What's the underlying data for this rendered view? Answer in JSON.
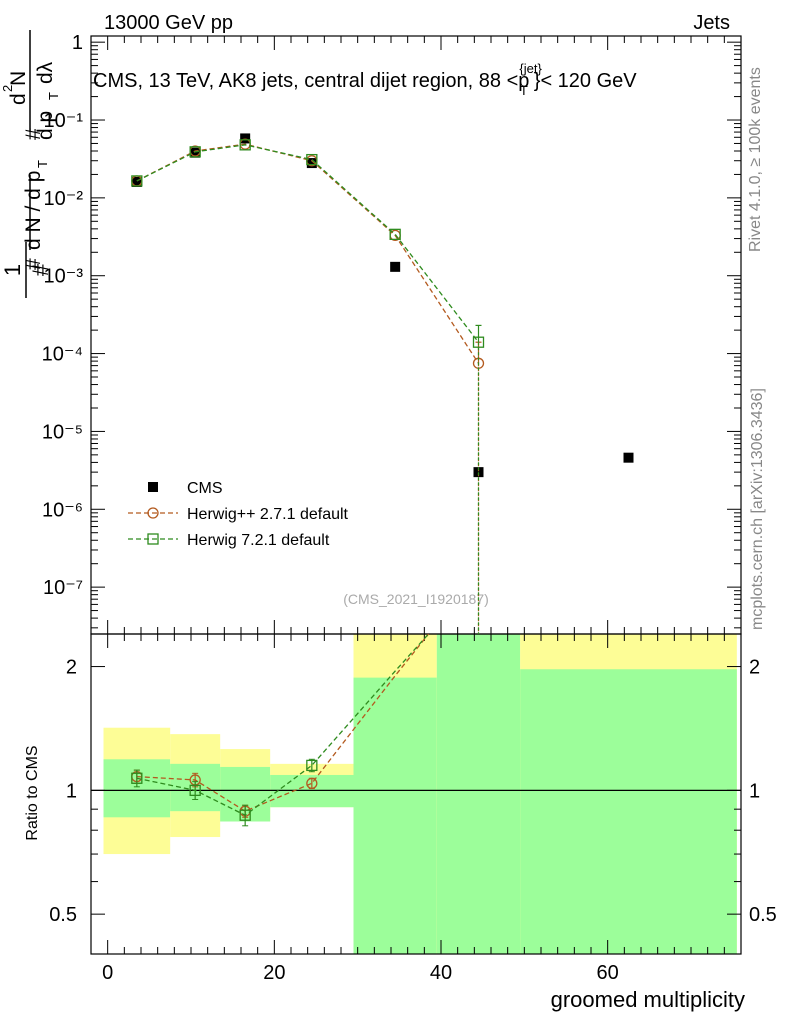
{
  "header": {
    "left": "13000 GeV pp",
    "right": "Jets",
    "title": "CMS, 13 TeV, AK8 jets, central dijet region, 88 <p",
    "title_sup": "{jet}",
    "title_sub": "T",
    "title_end": "}< 120 GeV"
  },
  "side_labels": {
    "rivet": "Rivet 4.1.0, ≥ 100k events",
    "mcplots": "mcplots.cern.ch [arXiv:1306.3436]"
  },
  "watermark": "(CMS_2021_I1920187)",
  "colors": {
    "data": "#000000",
    "herwigpp": "#b35a1f",
    "herwig7": "#2e8b1e",
    "band_inner": "#9cfe9a",
    "band_outer": "#fdfd96"
  },
  "chart_data": [
    {
      "type": "scatter",
      "panel": "main",
      "yscale": "log",
      "ylim": [
        2.5e-08,
        1.2
      ],
      "xlim": [
        -2,
        76
      ],
      "ylabel": "1/N dN/dp_T d²N/dp_T dλ",
      "ytick_labels": [
        "1",
        "10⁻¹",
        "10⁻²",
        "10⁻³",
        "10⁻⁴",
        "10⁻⁵",
        "10⁻⁶",
        "10⁻⁷"
      ],
      "ytick_values": [
        1,
        0.1,
        0.01,
        0.001,
        0.0001,
        1e-05,
        1e-06,
        1e-07
      ],
      "series": [
        {
          "name": "CMS",
          "marker": "filled-square",
          "x": [
            3.5,
            10.5,
            16.5,
            24.5,
            34.5,
            44.5,
            62.5
          ],
          "y": [
            0.016,
            0.038,
            0.058,
            0.028,
            0.0013,
            3e-06,
            4.6e-06
          ]
        },
        {
          "name": "Herwig++ 2.7.1 default",
          "marker": "open-circle",
          "line": "dashed",
          "x": [
            3.5,
            10.5,
            16.5,
            24.5,
            34.5,
            44.5
          ],
          "y": [
            0.0165,
            0.04,
            0.049,
            0.03,
            0.0033,
            7.5e-05
          ],
          "yerr_top": [
            null,
            null,
            null,
            null,
            null,
            0.00014
          ]
        },
        {
          "name": "Herwig 7.2.1 default",
          "marker": "open-square",
          "line": "dashed",
          "x": [
            3.5,
            10.5,
            16.5,
            24.5,
            34.5,
            44.5
          ],
          "y": [
            0.0165,
            0.039,
            0.048,
            0.031,
            0.0034,
            0.00014
          ],
          "yerr_top": [
            null,
            null,
            null,
            null,
            null,
            0.00023
          ]
        }
      ],
      "legend": [
        "CMS",
        "Herwig++ 2.7.1 default",
        "Herwig 7.2.1 default"
      ],
      "legend_position": "lower-left"
    },
    {
      "type": "line",
      "panel": "ratio",
      "yscale": "log",
      "ylim": [
        0.4,
        2.4
      ],
      "xlim": [
        -2,
        76
      ],
      "ylabel": "Ratio to CMS",
      "xlabel": "groomed multiplicity",
      "xtick_labels": [
        "0",
        "20",
        "40",
        "60"
      ],
      "xtick_values": [
        0,
        20,
        40,
        60
      ],
      "ytick_labels": [
        "0.5",
        "1",
        "2"
      ],
      "ytick_values": [
        0.5,
        1,
        2
      ],
      "reference_line": 1,
      "bands": [
        {
          "x": [
            -0.5,
            7.5
          ],
          "inner": [
            0.86,
            1.19
          ],
          "outer": [
            0.7,
            1.42
          ]
        },
        {
          "x": [
            7.5,
            13.5
          ],
          "inner": [
            0.89,
            1.16
          ],
          "outer": [
            0.77,
            1.37
          ]
        },
        {
          "x": [
            13.5,
            19.5
          ],
          "inner": [
            0.84,
            1.14
          ],
          "outer": [
            0.84,
            1.26
          ]
        },
        {
          "x": [
            19.5,
            29.5
          ],
          "inner": [
            0.91,
            1.09
          ],
          "outer": [
            0.91,
            1.16
          ]
        },
        {
          "x": [
            29.5,
            39.5
          ],
          "inner": [
            0.4,
            1.88
          ],
          "outer": [
            0.4,
            2.4
          ]
        },
        {
          "x": [
            39.5,
            49.5
          ],
          "inner": [
            0.4,
            2.4
          ],
          "outer": [
            0.4,
            2.4
          ]
        },
        {
          "x": [
            49.5,
            75.5
          ],
          "inner": [
            0.4,
            1.97
          ],
          "outer": [
            0.4,
            2.4
          ]
        }
      ],
      "series": [
        {
          "name": "Herwig++ 2.7.1 default",
          "x": [
            3.5,
            10.5,
            16.5,
            24.5,
            34.5,
            38.5
          ],
          "y": [
            1.08,
            1.06,
            0.89,
            1.04,
            1.9,
            2.4
          ],
          "yerr": [
            0.04,
            0.04,
            0.03,
            0.03,
            null,
            null
          ]
        },
        {
          "name": "Herwig 7.2.1 default",
          "x": [
            3.5,
            10.5,
            16.5,
            24.5,
            34.5,
            38.5
          ],
          "y": [
            1.07,
            1.0,
            0.87,
            1.15,
            1.95,
            2.4
          ],
          "yerr": [
            0.05,
            0.05,
            0.05,
            0.04,
            null,
            null
          ]
        }
      ]
    }
  ]
}
